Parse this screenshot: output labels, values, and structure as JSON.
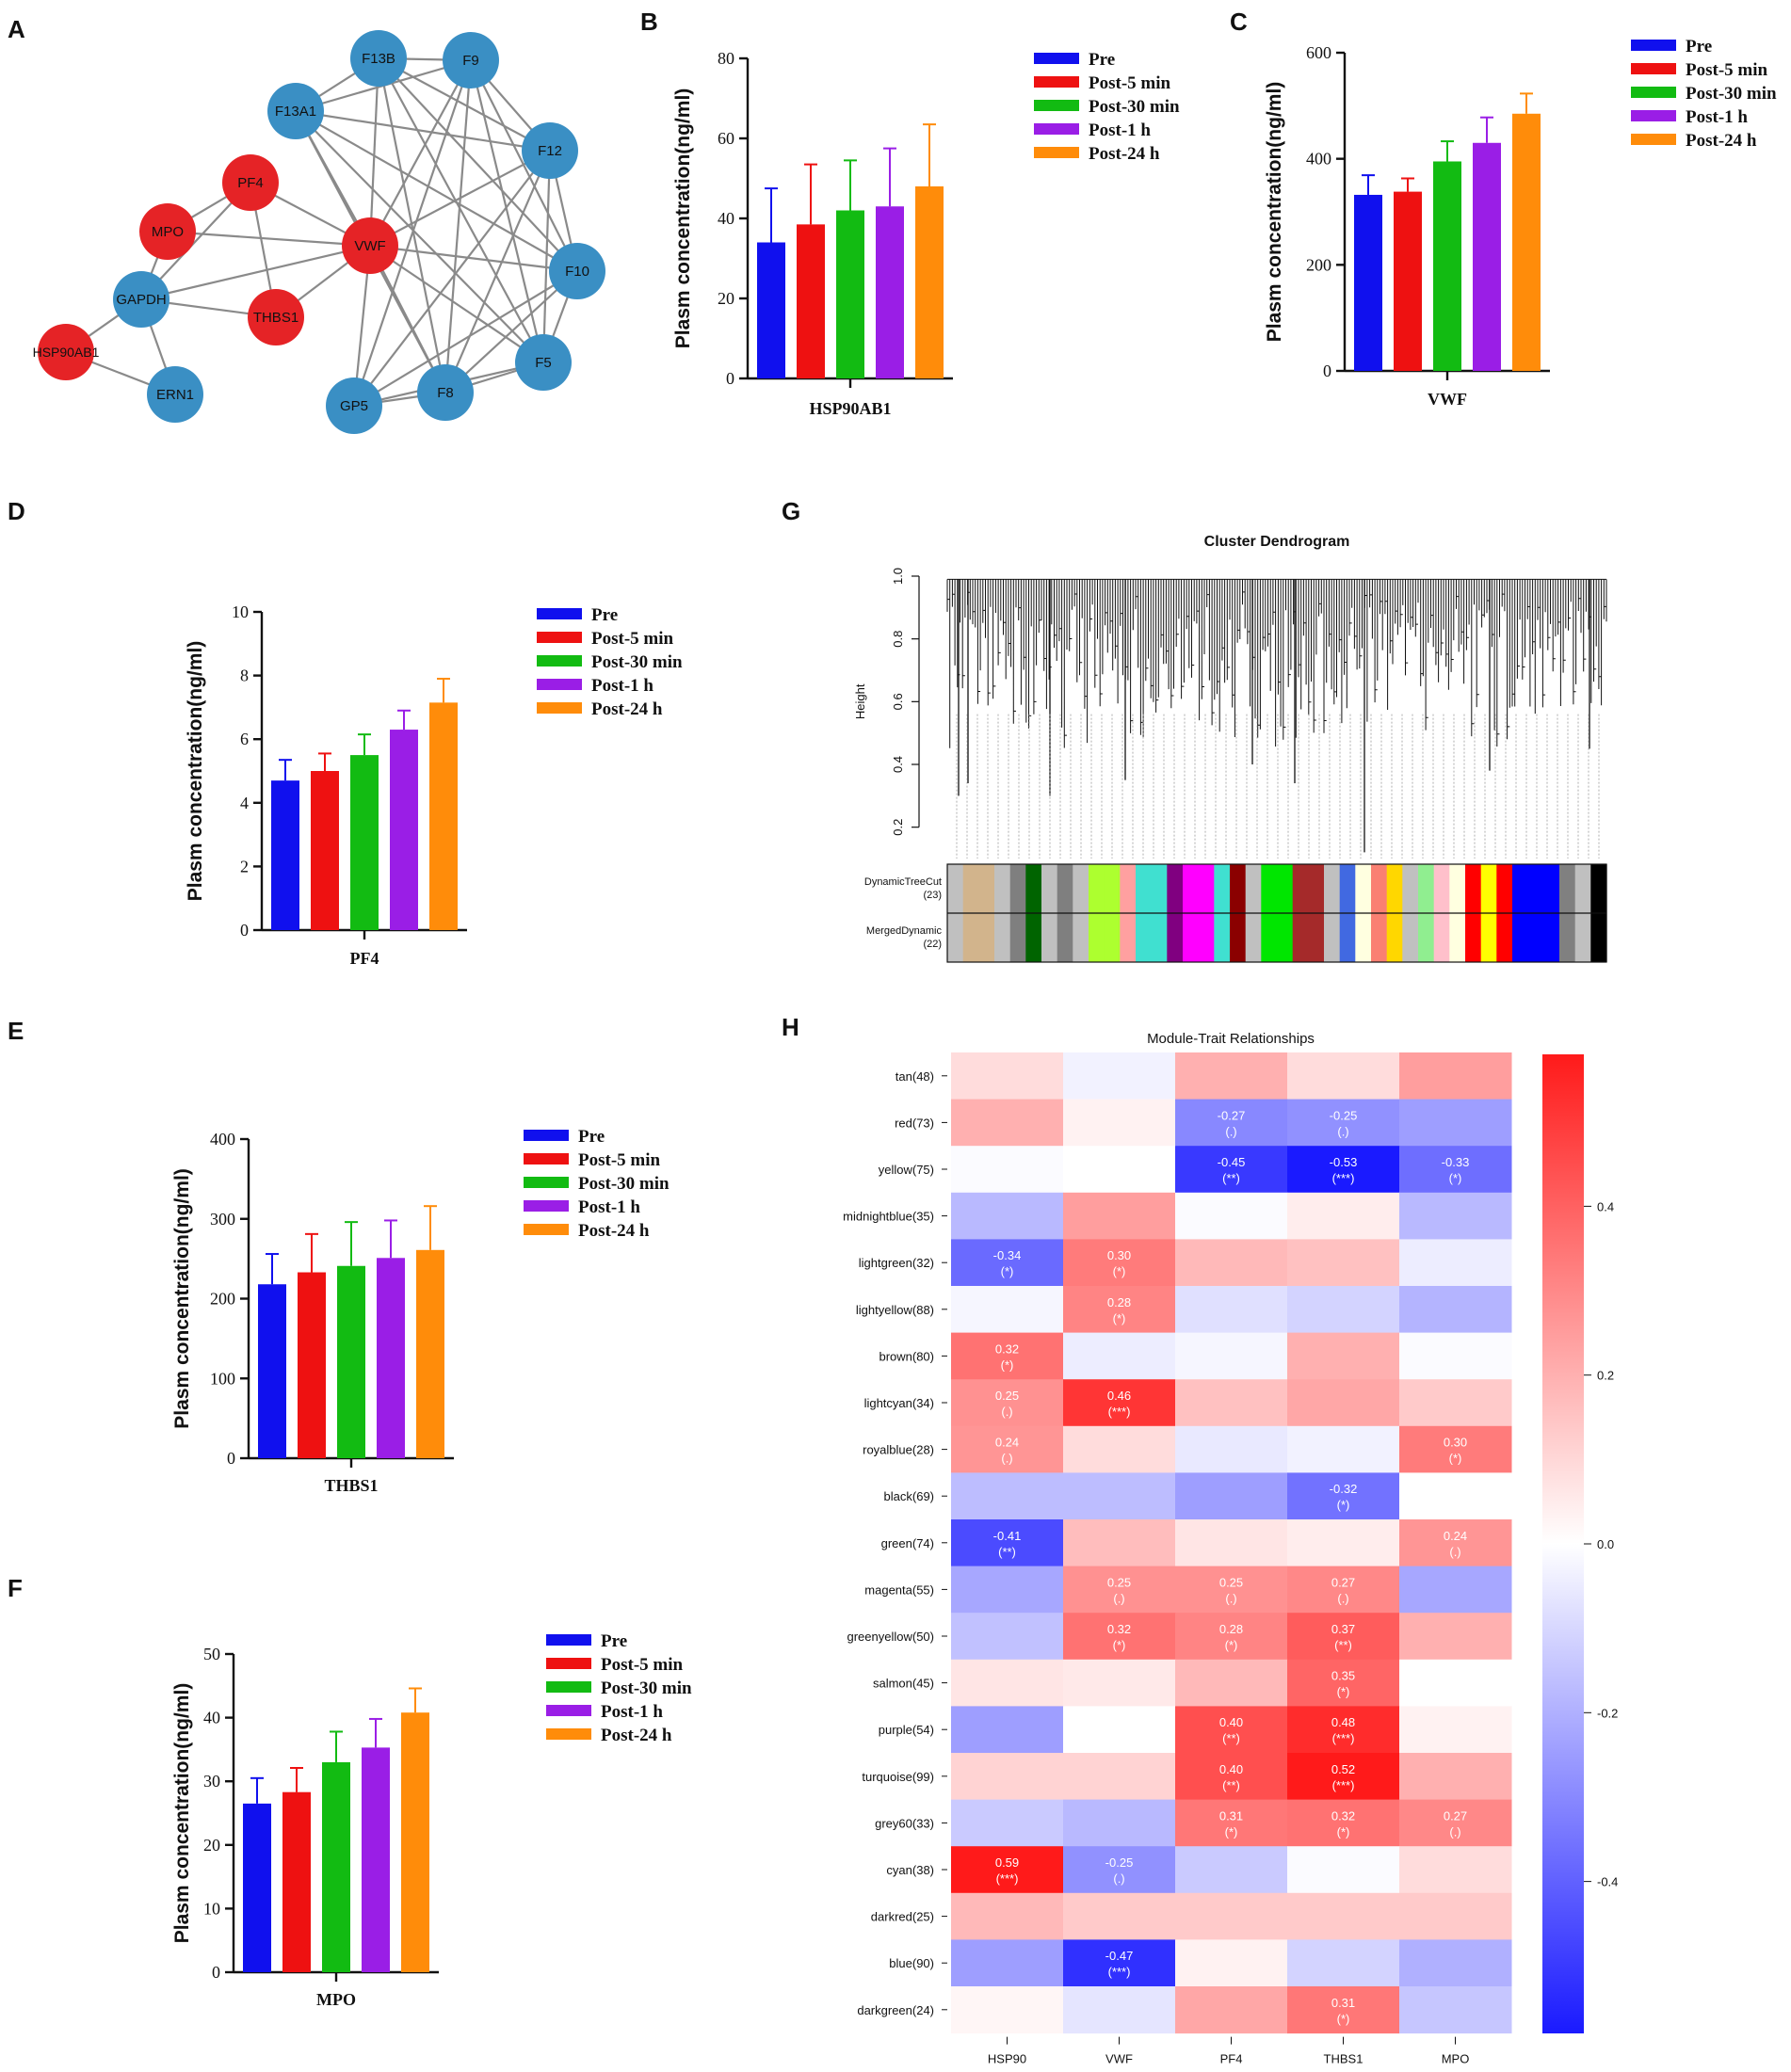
{
  "panels": {
    "A": "A",
    "B": "B",
    "C": "C",
    "D": "D",
    "E": "E",
    "F": "F",
    "G": "G",
    "H": "H"
  },
  "colors": {
    "node_red": "#e52326",
    "node_blue": "#3a8fc4",
    "edge": "#8a8a8a",
    "Pre": "#1010ee",
    "Post-5 min": "#ee1111",
    "Post-30 min": "#12bb12",
    "Post-1 h": "#9a1ee6",
    "Post-24 h": "#ff8c0a",
    "heat_neg": "#1a1aff",
    "heat_pos": "#ff1a1a"
  },
  "network": {
    "nodes": [
      {
        "id": "F13B",
        "color": "blue"
      },
      {
        "id": "F9",
        "color": "blue"
      },
      {
        "id": "F13A1",
        "color": "blue"
      },
      {
        "id": "F12",
        "color": "blue"
      },
      {
        "id": "PF4",
        "color": "red"
      },
      {
        "id": "MPO",
        "color": "red"
      },
      {
        "id": "VWF",
        "color": "red"
      },
      {
        "id": "F10",
        "color": "blue"
      },
      {
        "id": "GAPDH",
        "color": "blue"
      },
      {
        "id": "THBS1",
        "color": "red"
      },
      {
        "id": "HSP90AB1",
        "color": "red"
      },
      {
        "id": "F5",
        "color": "blue"
      },
      {
        "id": "ERN1",
        "color": "blue"
      },
      {
        "id": "GP5",
        "color": "blue"
      },
      {
        "id": "F8",
        "color": "blue"
      }
    ],
    "edges": [
      [
        "F13B",
        "F9"
      ],
      [
        "F13B",
        "F13A1"
      ],
      [
        "F13B",
        "F12"
      ],
      [
        "F13B",
        "F10"
      ],
      [
        "F13B",
        "F5"
      ],
      [
        "F13B",
        "F8"
      ],
      [
        "F13B",
        "VWF"
      ],
      [
        "F9",
        "F12"
      ],
      [
        "F9",
        "F10"
      ],
      [
        "F9",
        "F5"
      ],
      [
        "F9",
        "F8"
      ],
      [
        "F9",
        "GP5"
      ],
      [
        "F9",
        "VWF"
      ],
      [
        "F9",
        "F13A1"
      ],
      [
        "F13A1",
        "F12"
      ],
      [
        "F13A1",
        "F10"
      ],
      [
        "F13A1",
        "F5"
      ],
      [
        "F13A1",
        "VWF"
      ],
      [
        "F13A1",
        "F8"
      ],
      [
        "F12",
        "F10"
      ],
      [
        "F12",
        "F5"
      ],
      [
        "F12",
        "F8"
      ],
      [
        "F12",
        "VWF"
      ],
      [
        "F12",
        "GP5"
      ],
      [
        "F10",
        "F5"
      ],
      [
        "F10",
        "F8"
      ],
      [
        "F10",
        "VWF"
      ],
      [
        "F10",
        "GP5"
      ],
      [
        "F5",
        "F8"
      ],
      [
        "F5",
        "VWF"
      ],
      [
        "F5",
        "GP5"
      ],
      [
        "F8",
        "VWF"
      ],
      [
        "F8",
        "GP5"
      ],
      [
        "GP5",
        "VWF"
      ],
      [
        "PF4",
        "VWF"
      ],
      [
        "PF4",
        "MPO"
      ],
      [
        "PF4",
        "THBS1"
      ],
      [
        "PF4",
        "GAPDH"
      ],
      [
        "MPO",
        "VWF"
      ],
      [
        "MPO",
        "GAPDH"
      ],
      [
        "VWF",
        "GAPDH"
      ],
      [
        "VWF",
        "THBS1"
      ],
      [
        "GAPDH",
        "THBS1"
      ],
      [
        "GAPDH",
        "HSP90AB1"
      ],
      [
        "GAPDH",
        "ERN1"
      ],
      [
        "HSP90AB1",
        "ERN1"
      ]
    ]
  },
  "legend_labels": [
    "Pre",
    "Post-5 min",
    "Post-30 min",
    "Post-1 h",
    "Post-24 h"
  ],
  "chart_data": [
    {
      "panel": "B",
      "type": "bar",
      "xlabel": "HSP90AB1",
      "ylabel": "Plasm concentration(ng/ml)",
      "ylim": [
        0,
        80
      ],
      "ticks": [
        0,
        20,
        40,
        60,
        80
      ],
      "categories": [
        "Pre",
        "Post-5 min",
        "Post-30 min",
        "Post-1 h",
        "Post-24 h"
      ],
      "values": [
        34,
        38.5,
        42,
        43,
        48
      ],
      "errors": [
        13.5,
        15,
        12.5,
        14.5,
        15.5
      ]
    },
    {
      "panel": "C",
      "type": "bar",
      "xlabel": "VWF",
      "ylabel": "Plasm concentration(ng/ml)",
      "ylim": [
        0,
        600
      ],
      "ticks": [
        0,
        200,
        400,
        600
      ],
      "categories": [
        "Pre",
        "Post-5 min",
        "Post-30 min",
        "Post-1 h",
        "Post-24 h"
      ],
      "values": [
        332,
        338,
        395,
        430,
        485
      ],
      "errors": [
        37,
        25,
        38,
        48,
        38
      ]
    },
    {
      "panel": "D",
      "type": "bar",
      "xlabel": "PF4",
      "ylabel": "Plasm concentration(ng/ml)",
      "ylim": [
        0,
        10
      ],
      "ticks": [
        0,
        2,
        4,
        6,
        8,
        10
      ],
      "categories": [
        "Pre",
        "Post-5 min",
        "Post-30 min",
        "Post-1 h",
        "Post-24 h"
      ],
      "values": [
        4.7,
        5.0,
        5.5,
        6.3,
        7.15
      ],
      "errors": [
        0.65,
        0.55,
        0.65,
        0.6,
        0.75
      ]
    },
    {
      "panel": "E",
      "type": "bar",
      "xlabel": "THBS1",
      "ylabel": "Plasm concentration(ng/ml)",
      "ylim": [
        0,
        400
      ],
      "ticks": [
        0,
        100,
        200,
        300,
        400
      ],
      "categories": [
        "Pre",
        "Post-5 min",
        "Post-30 min",
        "Post-1 h",
        "Post-24 h"
      ],
      "values": [
        218,
        233,
        241,
        251,
        261
      ],
      "errors": [
        38,
        48,
        55,
        47,
        55
      ]
    },
    {
      "panel": "F",
      "type": "bar",
      "xlabel": "MPO",
      "ylabel": "Plasm concentration(ng/ml)",
      "ylim": [
        0,
        50
      ],
      "ticks": [
        0,
        10,
        20,
        30,
        40,
        50
      ],
      "categories": [
        "Pre",
        "Post-5 min",
        "Post-30 min",
        "Post-1 h",
        "Post-24 h"
      ],
      "values": [
        26.5,
        28.3,
        33,
        35.3,
        40.8
      ],
      "errors": [
        4,
        3.8,
        4.8,
        4.5,
        3.8
      ]
    },
    {
      "panel": "G",
      "type": "dendrogram",
      "title": "Cluster Dendrogram",
      "ylabel": "Height",
      "ylim": [
        0.1,
        1.0
      ],
      "ticks": [
        0.2,
        0.4,
        0.6,
        0.8,
        1.0
      ],
      "tick_labels": [
        "0.2",
        "0.4",
        "0.6",
        "0.8",
        "1.0"
      ],
      "row_labels": [
        "DynamicTreeCut",
        "(23)",
        "MergedDynamic",
        "(22)"
      ],
      "module_colors": [
        "#c0c0c0",
        "#d2b48c",
        "#d2b48c",
        "#c0c0c0",
        "#7f7f7f",
        "#006400",
        "#c0c0c0",
        "#7f7f7f",
        "#c0c0c0",
        "#adff2f",
        "#adff2f",
        "#ffa0a0",
        "#40e0d0",
        "#40e0d0",
        "#800080",
        "#ff00ff",
        "#ff00ff",
        "#40e0d0",
        "#8b0000",
        "#c0c0c0",
        "#00e600",
        "#00e600",
        "#a52a2a",
        "#a52a2a",
        "#c0c0c0",
        "#4169e1",
        "#ffffe0",
        "#fa8072",
        "#ffd700",
        "#c0c0c0",
        "#90ee90",
        "#ffc0cb",
        "#ffffe0",
        "#ff0000",
        "#ffff00",
        "#ff0000",
        "#0000ff",
        "#0000ff",
        "#0000ff",
        "#808080",
        "#c0c0c0",
        "#000000"
      ]
    },
    {
      "panel": "H",
      "type": "heatmap",
      "title": "Module-Trait Relationships",
      "columns": [
        "HSP90",
        "VWF",
        "PF4",
        "THBS1",
        "MPO"
      ],
      "rows": [
        "tan(48)",
        "red(73)",
        "yellow(75)",
        "midnightblue(35)",
        "lightgreen(32)",
        "lightyellow(88)",
        "brown(80)",
        "lightcyan(34)",
        "royalblue(28)",
        "black(69)",
        "green(74)",
        "magenta(55)",
        "greenyellow(50)",
        "salmon(45)",
        "purple(54)",
        "turquoise(99)",
        "grey60(33)",
        "cyan(38)",
        "darkred(25)",
        "blue(90)",
        "darkgreen(24)"
      ],
      "values": [
        [
          0.08,
          -0.03,
          0.18,
          0.08,
          0.22
        ],
        [
          0.18,
          0.03,
          -0.27,
          -0.25,
          -0.22
        ],
        [
          -0.01,
          0.0,
          -0.45,
          -0.53,
          -0.33
        ],
        [
          -0.16,
          0.22,
          -0.01,
          0.04,
          -0.16
        ],
        [
          -0.34,
          0.3,
          0.16,
          0.14,
          -0.04
        ],
        [
          -0.02,
          0.28,
          -0.07,
          -0.1,
          -0.17
        ],
        [
          0.32,
          -0.04,
          -0.02,
          0.18,
          -0.01
        ],
        [
          0.25,
          0.46,
          0.14,
          0.2,
          0.12
        ],
        [
          0.24,
          0.08,
          -0.05,
          -0.03,
          0.3
        ],
        [
          -0.15,
          -0.15,
          -0.22,
          -0.32,
          0.0
        ],
        [
          -0.41,
          0.15,
          0.06,
          0.04,
          0.24
        ],
        [
          -0.2,
          0.25,
          0.25,
          0.27,
          -0.2
        ],
        [
          -0.14,
          0.32,
          0.28,
          0.37,
          0.18
        ],
        [
          0.06,
          0.05,
          0.16,
          0.35,
          0.0
        ],
        [
          -0.22,
          0.0,
          0.4,
          0.48,
          0.03
        ],
        [
          0.1,
          0.1,
          0.4,
          0.52,
          0.18
        ],
        [
          -0.12,
          -0.16,
          0.31,
          0.32,
          0.27
        ],
        [
          0.59,
          -0.25,
          -0.12,
          -0.01,
          0.08
        ],
        [
          0.16,
          0.12,
          0.12,
          0.12,
          0.12
        ],
        [
          -0.22,
          -0.47,
          0.03,
          -0.1,
          -0.18
        ],
        [
          0.02,
          -0.06,
          0.2,
          0.31,
          -0.13
        ]
      ],
      "annotations": [
        [
          "",
          "",
          "",
          "",
          ""
        ],
        [
          "",
          "",
          "-0.27\n(.)",
          "-0.25\n(.)",
          ""
        ],
        [
          "",
          "",
          "-0.45\n(**)",
          "-0.53\n(***)",
          "-0.33\n(*)"
        ],
        [
          "",
          "",
          "",
          "",
          ""
        ],
        [
          "-0.34\n(*)",
          "0.30\n(*)",
          "",
          "",
          ""
        ],
        [
          "",
          "0.28\n(*)",
          "",
          "",
          ""
        ],
        [
          "0.32\n(*)",
          "",
          "",
          "",
          ""
        ],
        [
          "0.25\n(.)",
          "0.46\n(***)",
          "",
          "",
          ""
        ],
        [
          "0.24\n(.)",
          "",
          "",
          "",
          "0.30\n(*)"
        ],
        [
          "",
          "",
          "",
          "-0.32\n(*)",
          ""
        ],
        [
          "-0.41\n(**)",
          "",
          "",
          "",
          "0.24\n(.)"
        ],
        [
          "",
          "0.25\n(.)",
          "0.25\n(.)",
          "0.27\n(.)",
          ""
        ],
        [
          "",
          "0.32\n(*)",
          "0.28\n(*)",
          "0.37\n(**)",
          ""
        ],
        [
          "",
          "",
          "",
          "0.35\n(*)",
          ""
        ],
        [
          "",
          "",
          "0.40\n(**)",
          "0.48\n(***)",
          ""
        ],
        [
          "",
          "",
          "0.40\n(**)",
          "0.52\n(***)",
          ""
        ],
        [
          "",
          "",
          "0.31\n(*)",
          "0.32\n(*)",
          "0.27\n(.)"
        ],
        [
          "0.59\n(***)",
          "-0.25\n(.)",
          "",
          "",
          ""
        ],
        [
          "",
          "",
          "",
          "",
          ""
        ],
        [
          "",
          "-0.47\n(***)",
          "",
          "",
          ""
        ],
        [
          "",
          "",
          "",
          "0.31\n(*)",
          ""
        ]
      ],
      "colorbar": {
        "range": [
          -0.58,
          0.58
        ],
        "ticks": [
          0.4,
          0.2,
          0.0,
          -0.2,
          -0.4
        ],
        "tick_labels": [
          "0.4",
          "0.2",
          "0.0",
          "-0.2",
          "-0.4"
        ]
      }
    }
  ]
}
